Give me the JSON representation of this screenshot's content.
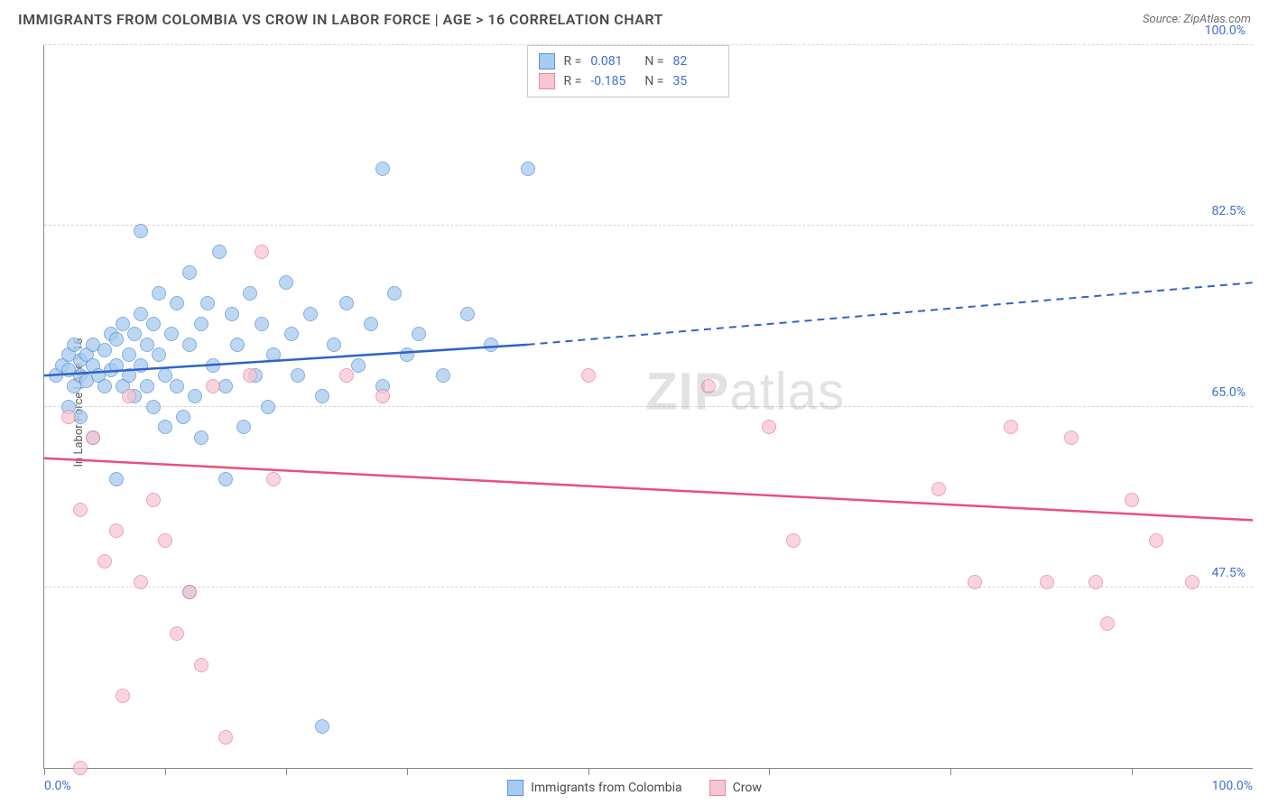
{
  "header": {
    "title": "IMMIGRANTS FROM COLOMBIA VS CROW IN LABOR FORCE | AGE > 16 CORRELATION CHART",
    "source": "Source: ZipAtlas.com"
  },
  "chart": {
    "type": "scatter",
    "ylabel": "In Labor Force | Age > 16",
    "xlim": [
      0,
      100
    ],
    "ylim": [
      30,
      100
    ],
    "y_ticks": [
      47.5,
      65.0,
      82.5,
      100.0
    ],
    "y_tick_labels": [
      "47.5%",
      "65.0%",
      "82.5%",
      "100.0%"
    ],
    "x_ticks": [
      0,
      10,
      20,
      30,
      45,
      60,
      75,
      90
    ],
    "x_min_label": "0.0%",
    "x_max_label": "100.0%",
    "background_color": "#ffffff",
    "grid_color": "#d5d5d5",
    "axis_color": "#888888",
    "tick_label_color": "#3b6fd6",
    "marker_radius": 8,
    "watermark": "ZIPatlas",
    "series": [
      {
        "name": "Immigrants from Colombia",
        "fill_color": "#a7caf0",
        "stroke_color": "#5a93d6",
        "line_color": "#2e63c9",
        "R": "0.081",
        "N": "82",
        "trend": {
          "x1": 0,
          "y1": 68,
          "x2": 40,
          "y2": 71,
          "dash_x2": 100,
          "dash_y2": 77
        },
        "points": [
          [
            1,
            68
          ],
          [
            1.5,
            69
          ],
          [
            2,
            68.5
          ],
          [
            2,
            70
          ],
          [
            2.5,
            67
          ],
          [
            2.5,
            71
          ],
          [
            3,
            68
          ],
          [
            3,
            69.5
          ],
          [
            3.5,
            70
          ],
          [
            3.5,
            67.5
          ],
          [
            4,
            69
          ],
          [
            4,
            71
          ],
          [
            4.5,
            68
          ],
          [
            5,
            70.5
          ],
          [
            5,
            67
          ],
          [
            5.5,
            72
          ],
          [
            5.5,
            68.5
          ],
          [
            6,
            69
          ],
          [
            6,
            71.5
          ],
          [
            6.5,
            67
          ],
          [
            6.5,
            73
          ],
          [
            7,
            68
          ],
          [
            7,
            70
          ],
          [
            7.5,
            72
          ],
          [
            7.5,
            66
          ],
          [
            8,
            69
          ],
          [
            8,
            74
          ],
          [
            8.5,
            67
          ],
          [
            8.5,
            71
          ],
          [
            9,
            73
          ],
          [
            9,
            65
          ],
          [
            9.5,
            70
          ],
          [
            9.5,
            76
          ],
          [
            10,
            68
          ],
          [
            10,
            63
          ],
          [
            10.5,
            72
          ],
          [
            11,
            75
          ],
          [
            11,
            67
          ],
          [
            11.5,
            64
          ],
          [
            12,
            71
          ],
          [
            12,
            78
          ],
          [
            12.5,
            66
          ],
          [
            13,
            73
          ],
          [
            13,
            62
          ],
          [
            13.5,
            75
          ],
          [
            14,
            69
          ],
          [
            14.5,
            80
          ],
          [
            15,
            67
          ],
          [
            15.5,
            74
          ],
          [
            16,
            71
          ],
          [
            16.5,
            63
          ],
          [
            17,
            76
          ],
          [
            17.5,
            68
          ],
          [
            18,
            73
          ],
          [
            18.5,
            65
          ],
          [
            19,
            70
          ],
          [
            20,
            77
          ],
          [
            20.5,
            72
          ],
          [
            21,
            68
          ],
          [
            22,
            74
          ],
          [
            23,
            66
          ],
          [
            24,
            71
          ],
          [
            25,
            75
          ],
          [
            26,
            69
          ],
          [
            27,
            73
          ],
          [
            28,
            67
          ],
          [
            29,
            76
          ],
          [
            30,
            70
          ],
          [
            31,
            72
          ],
          [
            33,
            68
          ],
          [
            35,
            74
          ],
          [
            37,
            71
          ],
          [
            28,
            88
          ],
          [
            40,
            88
          ],
          [
            23,
            34
          ],
          [
            12,
            47
          ],
          [
            6,
            58
          ],
          [
            8,
            82
          ],
          [
            4,
            62
          ],
          [
            3,
            64
          ],
          [
            2,
            65
          ],
          [
            15,
            58
          ]
        ]
      },
      {
        "name": "Crow",
        "fill_color": "#f7c6d3",
        "stroke_color": "#e586a3",
        "line_color": "#e94f7d",
        "R": "-0.185",
        "N": "35",
        "trend": {
          "x1": 0,
          "y1": 60,
          "x2": 100,
          "y2": 54
        },
        "points": [
          [
            2,
            64
          ],
          [
            3,
            55
          ],
          [
            4,
            62
          ],
          [
            5,
            50
          ],
          [
            6,
            53
          ],
          [
            6.5,
            37
          ],
          [
            7,
            66
          ],
          [
            8,
            48
          ],
          [
            9,
            56
          ],
          [
            10,
            52
          ],
          [
            11,
            43
          ],
          [
            12,
            47
          ],
          [
            13,
            40
          ],
          [
            14,
            67
          ],
          [
            15,
            33
          ],
          [
            17,
            68
          ],
          [
            18,
            80
          ],
          [
            19,
            58
          ],
          [
            25,
            68
          ],
          [
            28,
            66
          ],
          [
            45,
            68
          ],
          [
            55,
            67
          ],
          [
            60,
            63
          ],
          [
            62,
            52
          ],
          [
            74,
            57
          ],
          [
            77,
            48
          ],
          [
            80,
            63
          ],
          [
            83,
            48
          ],
          [
            85,
            62
          ],
          [
            87,
            48
          ],
          [
            88,
            44
          ],
          [
            92,
            52
          ],
          [
            90,
            56
          ],
          [
            95,
            48
          ],
          [
            3,
            30
          ]
        ]
      }
    ]
  },
  "legend_top_labels": {
    "R": "R =",
    "N": "N ="
  },
  "legend_bottom": [
    {
      "label": "Immigrants from Colombia",
      "fill": "#a7caf0",
      "stroke": "#5a93d6"
    },
    {
      "label": "Crow",
      "fill": "#f7c6d3",
      "stroke": "#e586a3"
    }
  ]
}
